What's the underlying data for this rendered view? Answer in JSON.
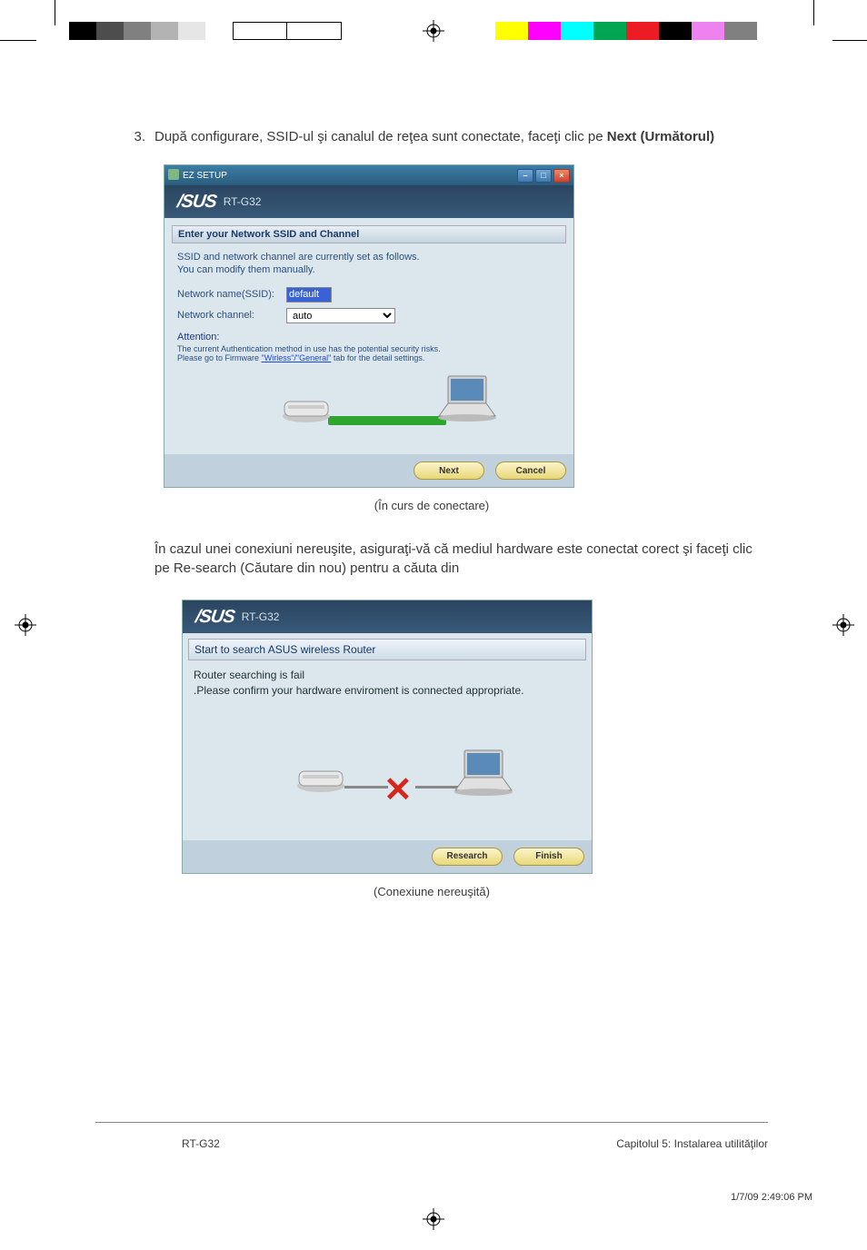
{
  "registration": {
    "color_bar_left": [
      "#000000",
      "#4d4d4d",
      "#808080",
      "#b3b3b3",
      "#e6e6e6",
      "#ffffff"
    ],
    "color_bar_right": [
      "#ffff00",
      "#ff00ff",
      "#00ffff",
      "#00a651",
      "#ed1c24",
      "#000000",
      "#ee82ee",
      "#808080"
    ],
    "color_bar_swatch_width": 30,
    "color_bar_swatch_height": 20
  },
  "step": {
    "number": "3.",
    "text_prefix": "După configurare, SSID-ul şi canalul de reţea sunt conectate, faceţi clic pe ",
    "bold": "Next (Următorul)"
  },
  "screenshot1": {
    "window_title": "EZ SETUP",
    "banner_model": "RT-G32",
    "panel_title": "Enter your Network SSID and Channel",
    "panel_sub_line1": "SSID and network channel are currently set as follows.",
    "panel_sub_line2": "You can modify them manually.",
    "ssid_label": "Network name(SSID):",
    "ssid_value": "default",
    "channel_label": "Network channel:",
    "channel_value": "auto",
    "attention_label": "Attention:",
    "attention_line1": "The current Authentication method in use has the potential security risks.",
    "attention_line2_pre": "Please go to Firmware ",
    "attention_link": "\"Wirless\"/\"General\"",
    "attention_line2_post": " tab for the detail settings.",
    "btn_next": "Next",
    "btn_cancel": "Cancel",
    "colors": {
      "body_bg": "#dce6ed",
      "banner_bg_from": "#2a4560",
      "banner_bg_to": "#385979",
      "connect_line": "#2ea52e"
    }
  },
  "caption1": "(În curs de conectare)",
  "paragraph": "În cazul unei conexiuni nereuşite, asiguraţi-vă că mediul hardware este conectat corect şi faceţi clic pe Re-search (Căutare din nou) pentru a căuta din",
  "screenshot2": {
    "banner_model": "RT-G32",
    "panel_title": "Start to search ASUS wireless Router",
    "fail_line1": "Router searching is fail",
    "fail_line2": ".Please confirm your hardware enviroment is connected appropriate.",
    "btn_research": "Research",
    "btn_finish": "Finish",
    "x_color": "#d8261c"
  },
  "caption2": "(Conexiune nereuşită)",
  "footer": {
    "left": "RT-G32",
    "right": "Capitolul 5: Instalarea utilităţilor"
  },
  "timestamp": "1/7/09   2:49:06 PM"
}
